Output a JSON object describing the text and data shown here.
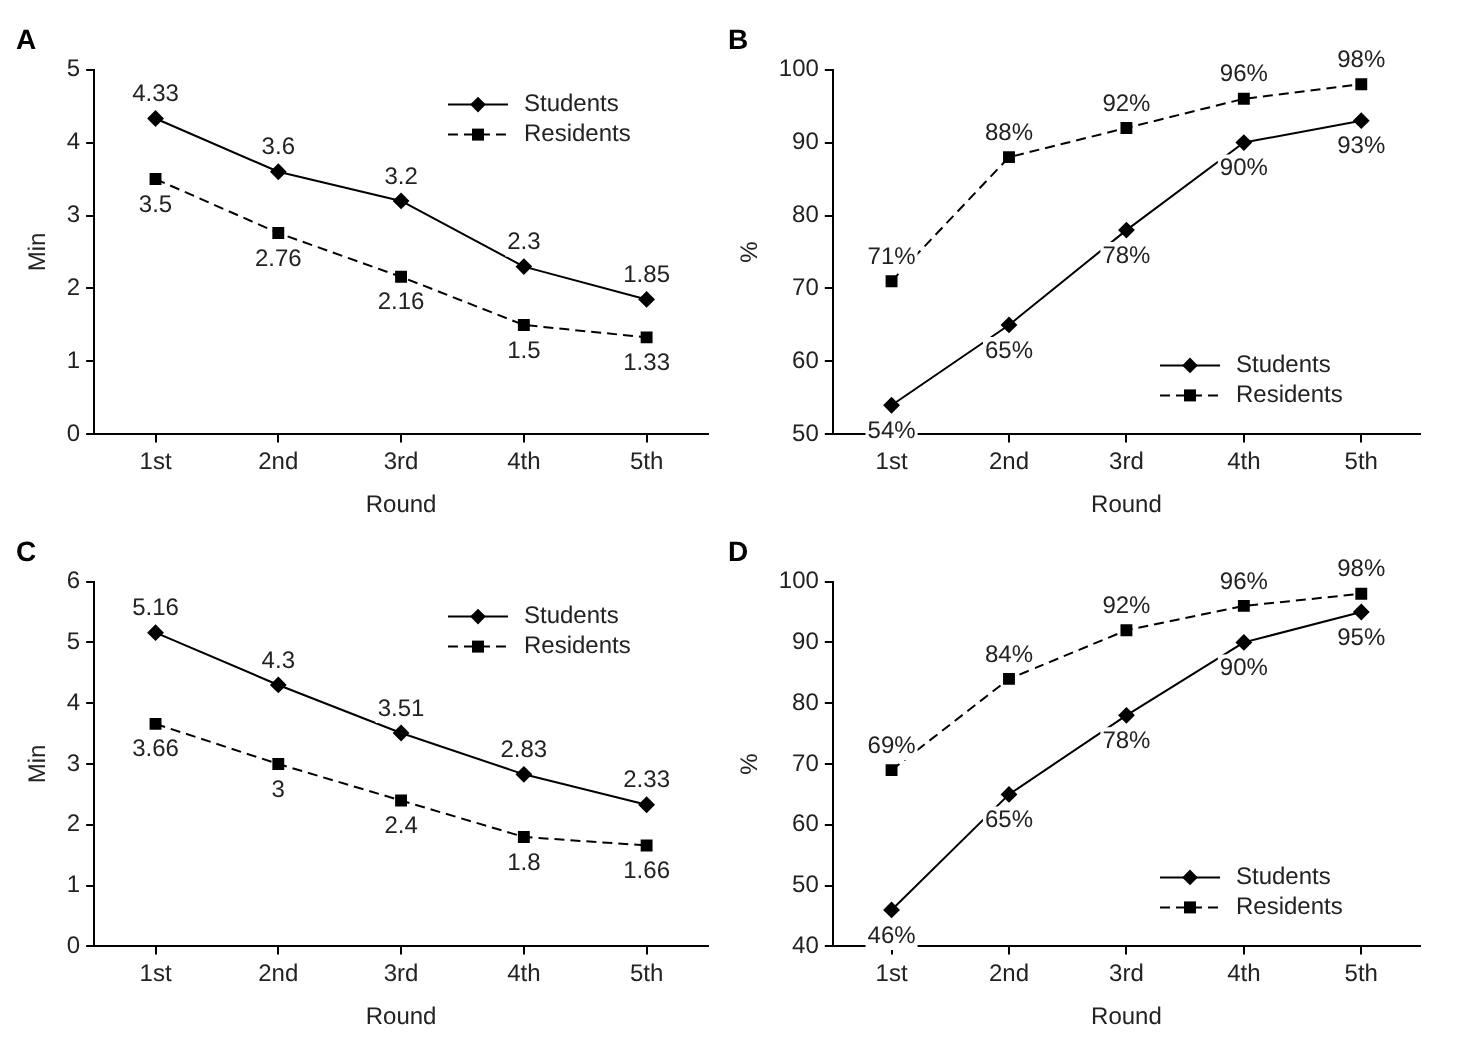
{
  "chart_data": [
    {
      "type": "line",
      "title": "A",
      "xlabel": "Round",
      "ylabel": "Min",
      "categories": [
        "1st",
        "2nd",
        "3rd",
        "4th",
        "5th"
      ],
      "ylim": [
        0,
        5
      ],
      "yticks": [
        0,
        1,
        2,
        3,
        4,
        5
      ],
      "grid": false,
      "legend": "top right",
      "data_labels": true,
      "series": [
        {
          "name": "Students",
          "color": "#000000",
          "marker": "diamond",
          "line_style": "solid",
          "values": [
            4.33,
            3.6,
            3.2,
            2.3,
            1.85
          ]
        },
        {
          "name": "Residents",
          "color": "#000000",
          "marker": "square",
          "line_style": "dashed",
          "values": [
            3.5,
            2.76,
            2.16,
            1.5,
            1.33
          ]
        }
      ]
    },
    {
      "type": "line",
      "title": "B",
      "xlabel": "Round",
      "ylabel": "%",
      "categories": [
        "1st",
        "2nd",
        "3rd",
        "4th",
        "5th"
      ],
      "ylim": [
        50,
        100
      ],
      "yticks": [
        50,
        60,
        70,
        80,
        90,
        100
      ],
      "grid": false,
      "legend": "bottom right",
      "series": [
        {
          "name": "Students",
          "color": "#000000",
          "marker": "diamond",
          "line_style": "solid",
          "values": [
            54,
            65,
            78,
            90,
            93
          ],
          "value_labels": [
            "54%",
            "65%",
            "78%",
            "90%",
            "93%"
          ]
        },
        {
          "name": "Residents",
          "color": "#000000",
          "marker": "square",
          "line_style": "dashed",
          "values": [
            71,
            88,
            92,
            96,
            98
          ],
          "value_labels": [
            "71%",
            "88%",
            "92%",
            "96%",
            "98%"
          ]
        }
      ]
    },
    {
      "type": "line",
      "title": "C",
      "xlabel": "Round",
      "ylabel": "Min",
      "categories": [
        "1st",
        "2nd",
        "3rd",
        "4th",
        "5th"
      ],
      "ylim": [
        0,
        6
      ],
      "yticks": [
        0,
        1,
        2,
        3,
        4,
        5,
        6
      ],
      "grid": false,
      "legend": "top right",
      "data_labels": true,
      "series": [
        {
          "name": "Students",
          "color": "#000000",
          "marker": "diamond",
          "line_style": "solid",
          "values": [
            5.16,
            4.3,
            3.51,
            2.83,
            2.33
          ]
        },
        {
          "name": "Residents",
          "color": "#000000",
          "marker": "square",
          "line_style": "dashed",
          "values": [
            3.66,
            3,
            2.4,
            1.8,
            1.66
          ]
        }
      ]
    },
    {
      "type": "line",
      "title": "D",
      "xlabel": "Round",
      "ylabel": "%",
      "categories": [
        "1st",
        "2nd",
        "3rd",
        "4th",
        "5th"
      ],
      "ylim": [
        40,
        100
      ],
      "yticks": [
        40,
        50,
        60,
        70,
        80,
        90,
        100
      ],
      "grid": false,
      "legend": "bottom right",
      "series": [
        {
          "name": "Students",
          "color": "#000000",
          "marker": "diamond",
          "line_style": "solid",
          "values": [
            46,
            65,
            78,
            90,
            95
          ],
          "value_labels": [
            "46%",
            "65%",
            "78%",
            "90%",
            "95%"
          ]
        },
        {
          "name": "Residents",
          "color": "#000000",
          "marker": "square",
          "line_style": "dashed",
          "values": [
            69,
            84,
            92,
            96,
            98
          ],
          "value_labels": [
            "69%",
            "84%",
            "92%",
            "96%",
            "98%"
          ]
        }
      ]
    }
  ]
}
